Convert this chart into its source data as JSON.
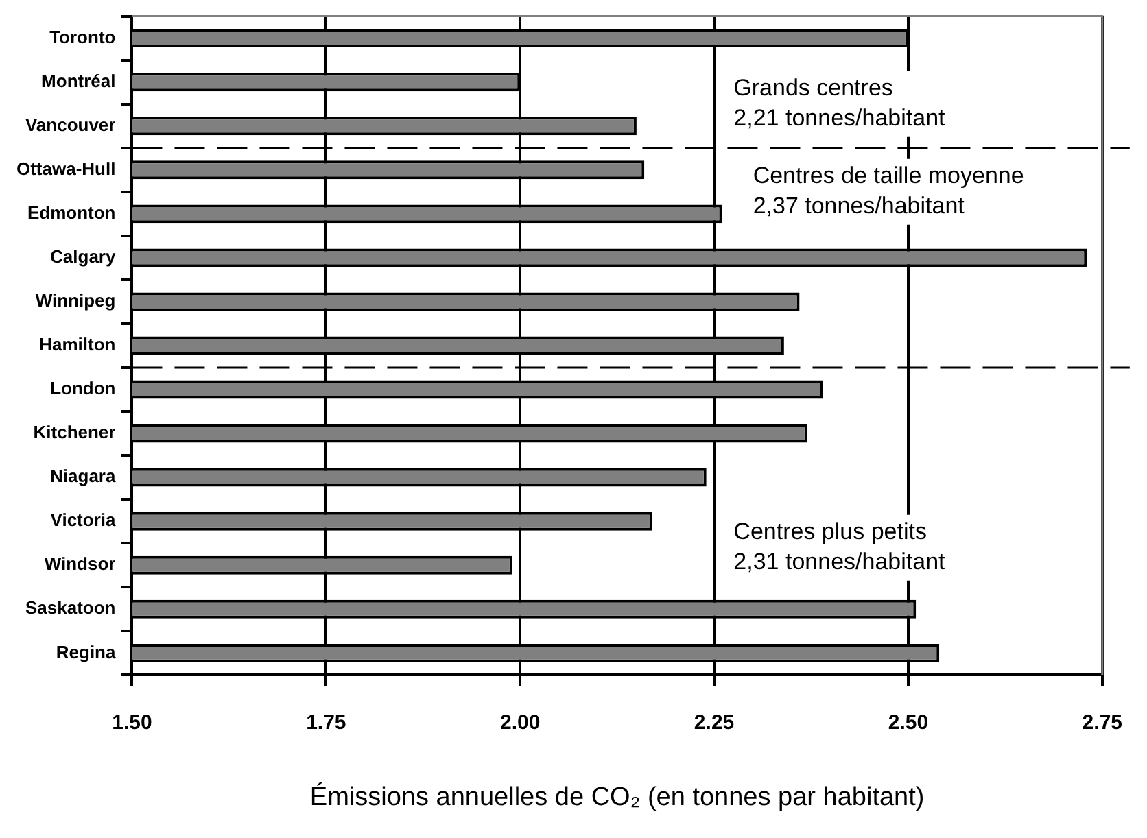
{
  "chart_data": {
    "type": "bar",
    "orientation": "horizontal",
    "xlabel": "Émissions annuelles de CO₂ (en tonnes par habitant)",
    "categories": [
      "Toronto",
      "Montréal",
      "Vancouver",
      "Ottawa-Hull",
      "Edmonton",
      "Calgary",
      "Winnipeg",
      "Hamilton",
      "London",
      "Kitchener",
      "Niagara",
      "Victoria",
      "Windsor",
      "Saskatoon",
      "Regina"
    ],
    "values": [
      2.5,
      2.0,
      2.15,
      2.16,
      2.26,
      2.73,
      2.36,
      2.34,
      2.39,
      2.37,
      2.24,
      2.17,
      1.99,
      2.51,
      2.54
    ],
    "color": "#808080",
    "xlim": [
      1.5,
      2.75
    ],
    "xticks": [
      {
        "value": 1.5,
        "label": "1.50"
      },
      1.75,
      {
        "value": 2.0,
        "label": "2.00"
      },
      2.25,
      {
        "value": 2.5,
        "label": "2.50"
      },
      2.75
    ],
    "grid": "x",
    "ref_lines": [
      {
        "axis": "y",
        "value": "Vancouver",
        "line_style": "dashed"
      },
      {
        "axis": "y",
        "value": "Hamilton",
        "line_style": "dashed"
      }
    ],
    "annotations": [
      "Grands centres\n2,21 tonnes/habitant",
      "Centres de taille moyenne\n2,37 tonnes/habitant",
      "Centres plus petits\n2,31 tonnes/habitant"
    ]
  }
}
